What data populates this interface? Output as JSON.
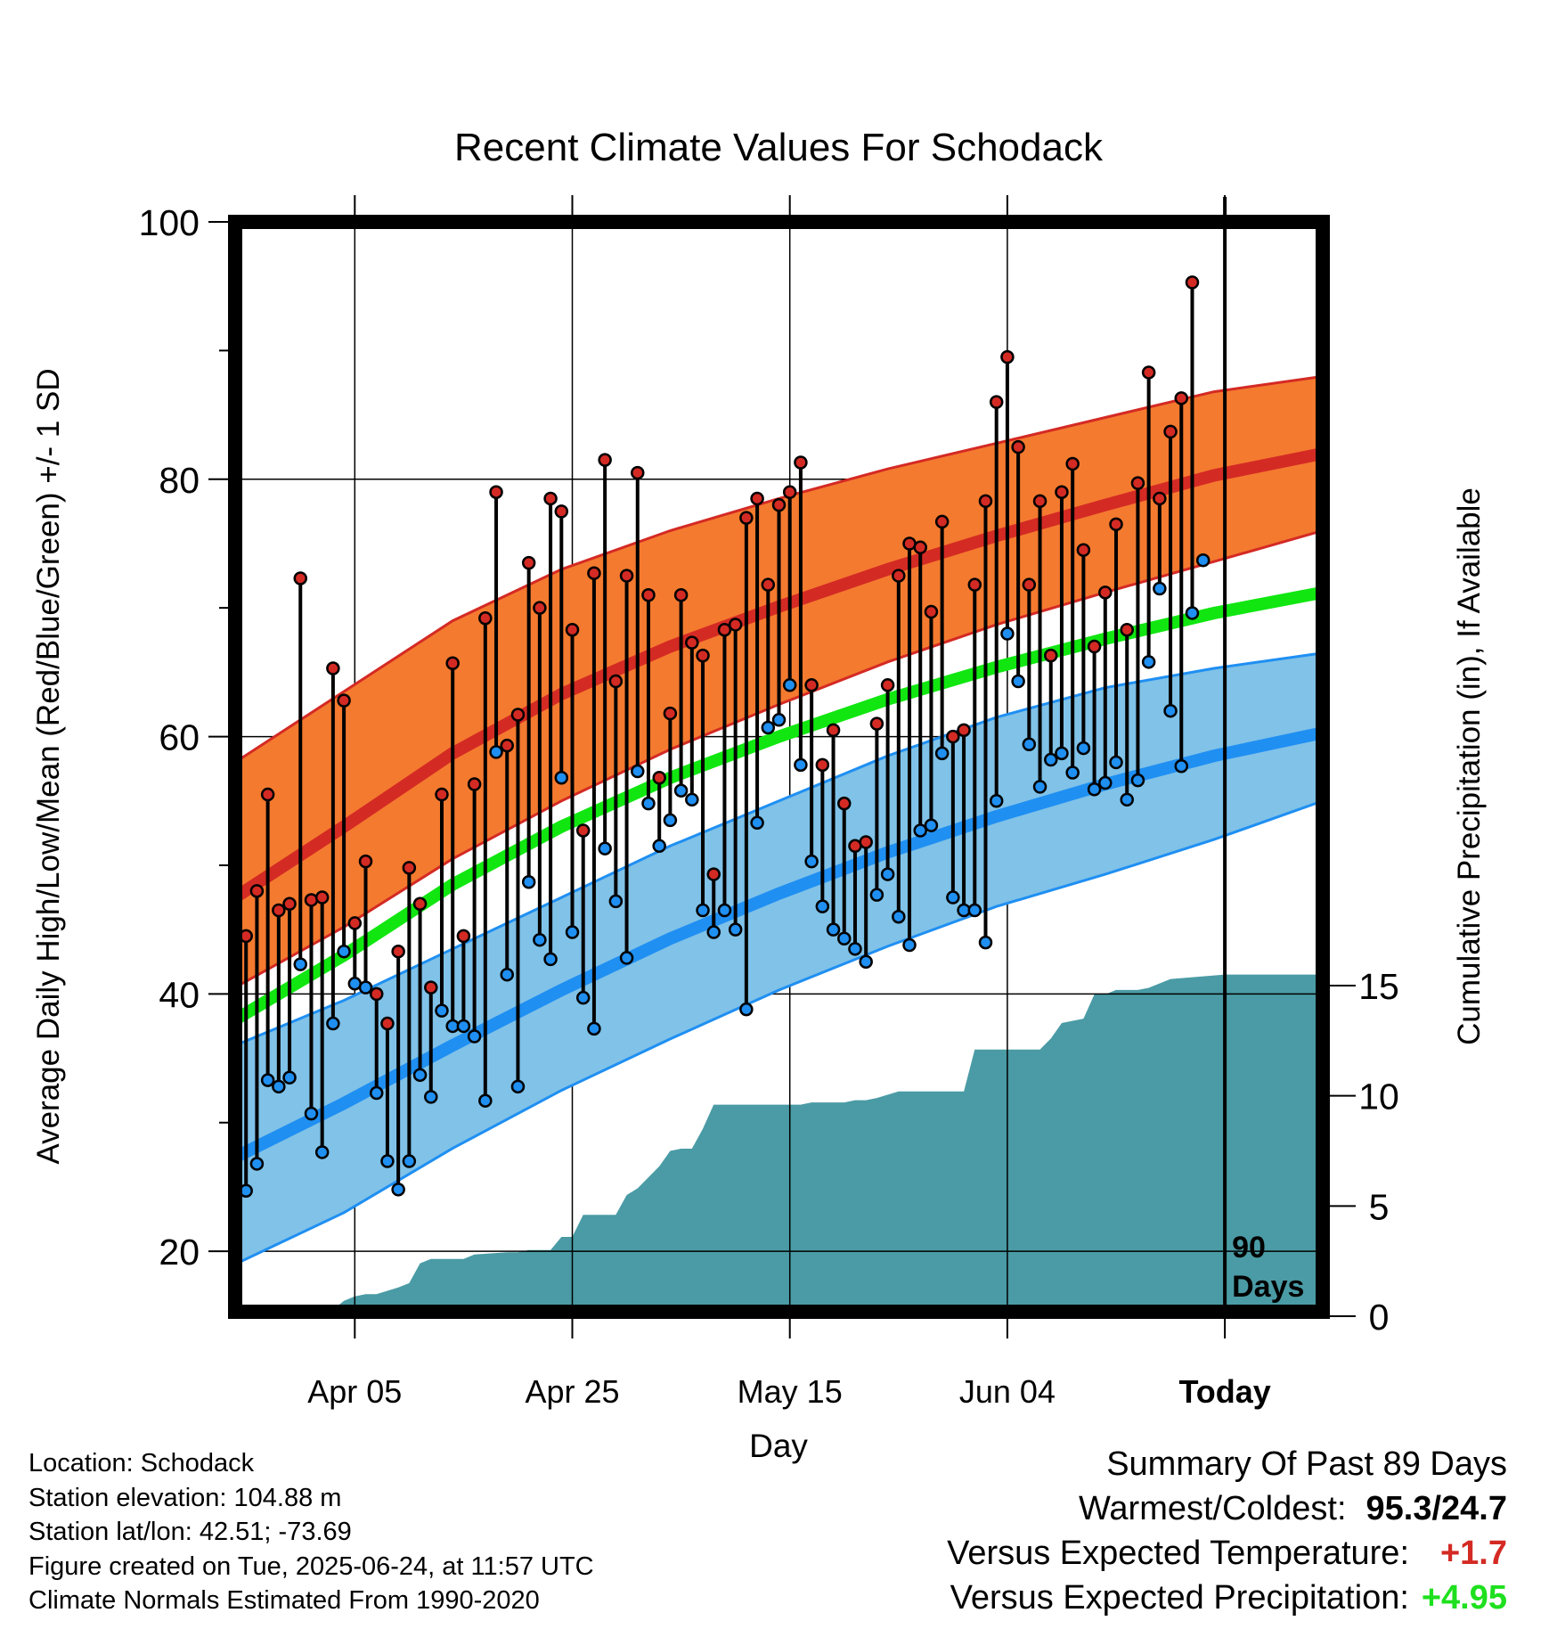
{
  "chart_data": {
    "type": "line",
    "title": "Recent Climate Values For Schodack",
    "xlabel": "Day",
    "ylabel": "Average Daily High/Low/Mean (Red/Blue/Green) +/- 1 SD",
    "y2label": "Cumulative Precipitation (in), If Available",
    "x_tick_labels": [
      "Apr 05",
      "Apr 25",
      "May 15",
      "Jun 04",
      "Today"
    ],
    "x_tick_days": [
      10,
      30,
      50,
      70,
      90
    ],
    "y_ticks": [
      20,
      40,
      60,
      80,
      100
    ],
    "ylim": [
      15.3,
      100
    ],
    "y2_ticks": [
      0,
      5,
      10,
      15
    ],
    "xlim": [
      -1,
      99
    ],
    "today_day": 90,
    "days_label": [
      "90",
      "Days"
    ],
    "normals": {
      "day": [
        -1,
        9,
        19,
        29,
        39,
        49,
        59,
        69,
        79,
        89,
        99
      ],
      "high_mean": [
        47.5,
        53.0,
        58.7,
        63.3,
        67.0,
        70.1,
        73.0,
        75.6,
        78.0,
        80.3,
        82.0
      ],
      "high_upper": [
        58.0,
        63.5,
        69.0,
        73.0,
        76.0,
        78.5,
        80.8,
        82.8,
        84.8,
        86.8,
        88.0
      ],
      "high_lower": [
        40.5,
        45.2,
        50.5,
        55.0,
        59.0,
        62.5,
        65.8,
        68.7,
        71.2,
        73.6,
        76.0
      ],
      "mean": [
        38.0,
        43.0,
        48.5,
        53.0,
        56.8,
        60.0,
        62.9,
        65.4,
        67.6,
        69.6,
        71.2
      ],
      "low_mean": [
        27.3,
        31.5,
        36.0,
        40.3,
        44.3,
        47.8,
        51.0,
        53.8,
        56.3,
        58.5,
        60.3
      ],
      "low_upper": [
        36.0,
        39.5,
        43.5,
        47.5,
        51.5,
        55.0,
        58.5,
        61.5,
        63.8,
        65.3,
        66.5
      ],
      "low_lower": [
        19.0,
        23.0,
        28.0,
        32.5,
        36.5,
        40.3,
        43.7,
        46.8,
        49.3,
        52.0,
        55.0
      ]
    },
    "series": [
      {
        "name": "High",
        "values": [
          44.5,
          48.0,
          55.5,
          46.5,
          47.0,
          72.3,
          47.3,
          47.5,
          65.3,
          62.8,
          45.5,
          50.3,
          40.0,
          37.7,
          43.3,
          49.8,
          47.0,
          40.5,
          55.5,
          65.7,
          44.5,
          56.3,
          69.2,
          79.0,
          59.3,
          61.7,
          73.5,
          70.0,
          78.5,
          77.5,
          68.3,
          52.7,
          72.7,
          81.5,
          64.3,
          72.5,
          80.5,
          71.0,
          56.8,
          61.8,
          71.0,
          67.3,
          66.3,
          49.3,
          68.3,
          68.7,
          77.0,
          78.5,
          71.8,
          78.0,
          79.0,
          81.3,
          64.0,
          57.8,
          60.5,
          54.8,
          51.5,
          51.8,
          61.0,
          64.0,
          72.5,
          75.0,
          74.7,
          69.7,
          76.7,
          60.0,
          60.5,
          71.8,
          78.3,
          86.0,
          89.5,
          82.5,
          71.8,
          78.3,
          66.3,
          79.0,
          81.2,
          74.5,
          67.0,
          71.2,
          76.5,
          68.3,
          79.7,
          88.3,
          78.5,
          83.7,
          86.3,
          95.3
        ]
      },
      {
        "name": "Low",
        "values": [
          24.7,
          26.8,
          33.3,
          32.8,
          33.5,
          42.3,
          30.7,
          27.7,
          37.7,
          43.3,
          40.8,
          40.5,
          32.3,
          27.0,
          24.8,
          27.0,
          33.7,
          32.0,
          38.7,
          37.5,
          37.5,
          36.7,
          31.7,
          58.8,
          41.5,
          32.8,
          48.7,
          44.2,
          42.7,
          56.8,
          44.8,
          39.7,
          37.3,
          51.3,
          47.2,
          42.8,
          57.3,
          54.8,
          51.5,
          53.5,
          55.8,
          55.1,
          46.5,
          44.8,
          46.5,
          45.0,
          38.8,
          53.3,
          60.7,
          61.3,
          64.0,
          57.8,
          50.3,
          46.8,
          45.0,
          44.3,
          43.5,
          42.5,
          47.7,
          49.3,
          46.0,
          43.8,
          52.7,
          53.1,
          58.7,
          47.5,
          46.5,
          46.5,
          44.0,
          55.0,
          68.0,
          64.3,
          59.4,
          56.1,
          58.2,
          58.7,
          57.2,
          59.1,
          55.9,
          56.4,
          58.0,
          55.1,
          56.6,
          65.8,
          71.5,
          62.0,
          57.7,
          69.6,
          73.7
        ]
      },
      {
        "name": "Precipitation",
        "x": [
          -1,
          5,
          6,
          7,
          8,
          9,
          10,
          11,
          12,
          14,
          15,
          16,
          17,
          18,
          20,
          21,
          24,
          25,
          26,
          28,
          29,
          30,
          31,
          33,
          34,
          35,
          36,
          38,
          39,
          40,
          41,
          42,
          43,
          45,
          46,
          47,
          48,
          50,
          51,
          52,
          54,
          55,
          56,
          57,
          58,
          60,
          61,
          62,
          63,
          65,
          66,
          67,
          69,
          70,
          71,
          72,
          73,
          74,
          75,
          77,
          78,
          79,
          80,
          82,
          83,
          85,
          90,
          99
        ],
        "values": [
          0.0,
          0.0,
          0.2,
          0.3,
          0.3,
          0.7,
          0.9,
          1.0,
          1.0,
          1.3,
          1.5,
          2.4,
          2.6,
          2.6,
          2.6,
          2.8,
          2.9,
          2.9,
          3.0,
          3.0,
          3.6,
          3.6,
          4.6,
          4.6,
          4.6,
          5.5,
          5.8,
          6.8,
          7.5,
          7.6,
          7.6,
          8.5,
          9.6,
          9.6,
          9.6,
          9.6,
          9.6,
          9.6,
          9.6,
          9.7,
          9.7,
          9.7,
          9.8,
          9.8,
          9.9,
          10.2,
          10.2,
          10.2,
          10.2,
          10.2,
          10.2,
          12.1,
          12.1,
          12.1,
          12.1,
          12.1,
          12.1,
          12.6,
          13.3,
          13.5,
          14.6,
          14.6,
          14.8,
          14.8,
          14.9,
          15.3,
          15.5,
          15.5
        ]
      }
    ],
    "grid": "on",
    "colors": {
      "high": "#d42a24",
      "low": "#1f8ff2",
      "mean": "#11e611",
      "high_band": "#f47a2f",
      "low_band": "#80c2e8",
      "precip": "#4a9ba5"
    }
  },
  "info": {
    "lines": [
      "Location: Schodack",
      "Station elevation: 104.88 m",
      "Station lat/lon: 42.51; -73.69",
      "Figure created on Tue, 2025-06-24, at 11:57 UTC",
      "Climate Normals Estimated From 1990-2020"
    ]
  },
  "summary": {
    "heading": "Summary Of Past 89 Days",
    "warmest_coldest_label": "Warmest/Coldest:",
    "warmest_coldest_value": "95.3/24.7",
    "temp_label": "Versus Expected Temperature:",
    "temp_value": "+1.7",
    "precip_label": "Versus Expected Precipitation:",
    "precip_value": "+4.95",
    "colors": {
      "temp_value": "#d42a24",
      "precip_value": "#1ee01e"
    }
  }
}
